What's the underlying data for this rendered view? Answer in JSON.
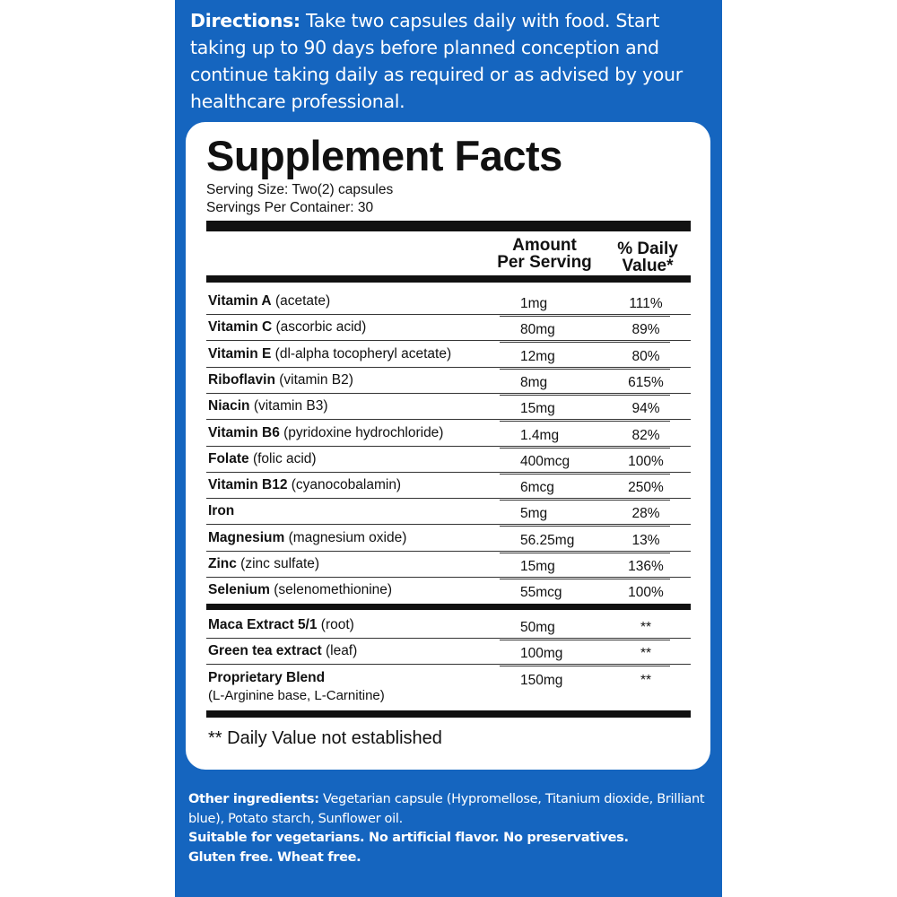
{
  "directions": {
    "label": "Directions:",
    "text": " Take two capsules daily with food. Start taking up to 90 days before planned conception and continue taking daily as required or as advised by your healthcare professional."
  },
  "facts": {
    "title": "Supplement Facts",
    "serving_size": "Serving Size: Two(2) capsules",
    "servings_per_container": "Servings Per Container: 30",
    "header_amount_line1": "Amount",
    "header_amount_line2": "Per Serving",
    "header_dv_line1": "% Daily",
    "header_dv_line2": "Value*",
    "vitamins": [
      {
        "name": "Vitamin A",
        "detail": " (acetate)",
        "amount": "1mg",
        "dv": "111%"
      },
      {
        "name": "Vitamin C",
        "detail": " (ascorbic acid)",
        "amount": "80mg",
        "dv": "89%"
      },
      {
        "name": "Vitamin E",
        "detail": " (dl-alpha tocopheryl acetate)",
        "amount": "12mg",
        "dv": "80%"
      },
      {
        "name": "Riboflavin",
        "detail": " (vitamin B2)",
        "amount": "8mg",
        "dv": "615%"
      },
      {
        "name": "Niacin",
        "detail": " (vitamin B3)",
        "amount": "15mg",
        "dv": "94%"
      },
      {
        "name": "Vitamin B6",
        "detail": " (pyridoxine hydrochloride)",
        "amount": "1.4mg",
        "dv": "82%"
      },
      {
        "name": "Folate",
        "detail": " (folic acid)",
        "amount": "400mcg",
        "dv": "100%"
      },
      {
        "name": "Vitamin B12",
        "detail": " (cyanocobalamin)",
        "amount": "6mcg",
        "dv": "250%"
      },
      {
        "name": "Iron",
        "detail": "",
        "amount": "5mg",
        "dv": "28%"
      },
      {
        "name": "Magnesium",
        "detail": " (magnesium oxide)",
        "amount": "56.25mg",
        "dv": "13%"
      },
      {
        "name": "Zinc",
        "detail": " (zinc sulfate)",
        "amount": "15mg",
        "dv": "136%"
      },
      {
        "name": "Selenium",
        "detail": " (selenomethionine)",
        "amount": "55mcg",
        "dv": "100%"
      }
    ],
    "extracts": [
      {
        "name": "Maca Extract 5/1",
        "detail": " (root)",
        "amount": "50mg",
        "dv": "**"
      },
      {
        "name": "Green tea extract",
        "detail": " (leaf)",
        "amount": "100mg",
        "dv": "**"
      },
      {
        "name": "Proprietary Blend",
        "detail": "(L-Arginine base, L-Carnitine)",
        "amount": "150mg",
        "dv": "**"
      }
    ],
    "note": "** Daily Value not established"
  },
  "other": {
    "label": "Other ingredients:",
    "text": " Vegetarian capsule (Hypromellose, Titanium dioxide, Brilliant blue), Potato starch, Sunflower oil.",
    "line2": "Suitable for vegetarians. No artificial flavor. No preservatives.",
    "line3": "Gluten free. Wheat free."
  },
  "colors": {
    "panel": "#1565bf",
    "text_dark": "#111111"
  }
}
